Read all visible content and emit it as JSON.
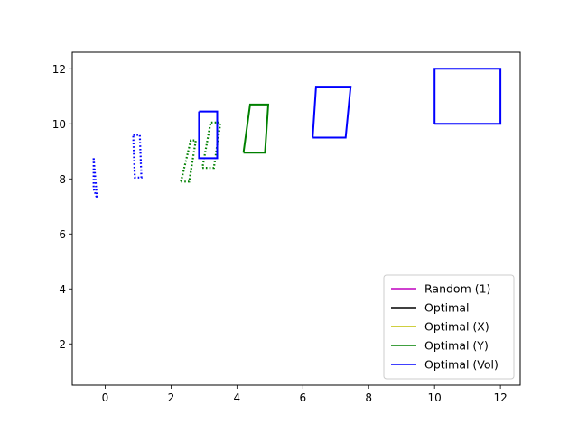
{
  "chart_data": {
    "type": "line",
    "title": "",
    "xlabel": "",
    "ylabel": "",
    "xlim": [
      -1,
      12.6
    ],
    "ylim": [
      0.5,
      12.6
    ],
    "xticks": [
      0,
      2,
      4,
      6,
      8,
      10,
      12
    ],
    "yticks": [
      2,
      4,
      6,
      8,
      10,
      12
    ],
    "grid": false,
    "legend_position": "lower-right",
    "legend": [
      {
        "name": "Random (1)",
        "color": "#bf00bf"
      },
      {
        "name": "Optimal",
        "color": "#000000"
      },
      {
        "name": "Optimal (X)",
        "color": "#bfbf00"
      },
      {
        "name": "Optimal (Y)",
        "color": "#008000"
      },
      {
        "name": "Optimal (Vol)",
        "color": "#0000ff"
      }
    ],
    "series": [
      {
        "name": "Optimal (Y)",
        "color": "#008000",
        "style": "dotted",
        "shapes": [
          [
            [
              2.3,
              7.9
            ],
            [
              2.55,
              7.9
            ],
            [
              2.75,
              9.4
            ],
            [
              2.6,
              9.4
            ],
            [
              2.3,
              7.9
            ]
          ],
          [
            [
              2.95,
              8.4
            ],
            [
              3.3,
              8.4
            ],
            [
              3.5,
              10.05
            ],
            [
              3.2,
              10.05
            ],
            [
              2.95,
              8.4
            ]
          ]
        ]
      },
      {
        "name": "Optimal (Y)",
        "color": "#008000",
        "style": "solid",
        "shapes": [
          [
            [
              4.2,
              8.95
            ],
            [
              4.85,
              8.95
            ],
            [
              4.95,
              10.7
            ],
            [
              4.4,
              10.7
            ],
            [
              4.2,
              8.95
            ]
          ]
        ]
      },
      {
        "name": "Optimal (Vol)",
        "color": "#0000ff",
        "style": "dotted",
        "shapes": [
          [
            [
              -0.35,
              8.75
            ],
            [
              -0.35,
              7.65
            ],
            [
              -0.25,
              7.3
            ],
            [
              -0.35,
              8.75
            ]
          ],
          [
            [
              0.85,
              9.6
            ],
            [
              1.05,
              9.6
            ],
            [
              1.1,
              8.05
            ],
            [
              0.9,
              8.05
            ],
            [
              0.85,
              9.6
            ]
          ]
        ]
      },
      {
        "name": "Optimal (Vol)",
        "color": "#0000ff",
        "style": "solid",
        "shapes": [
          [
            [
              2.85,
              10.45
            ],
            [
              3.4,
              10.45
            ],
            [
              3.4,
              8.75
            ],
            [
              2.85,
              8.75
            ],
            [
              2.85,
              10.45
            ]
          ],
          [
            [
              6.3,
              9.5
            ],
            [
              7.3,
              9.5
            ],
            [
              7.45,
              11.35
            ],
            [
              6.4,
              11.35
            ],
            [
              6.3,
              9.5
            ]
          ],
          [
            [
              10.0,
              10.0
            ],
            [
              12.0,
              10.0
            ],
            [
              12.0,
              12.0
            ],
            [
              10.0,
              12.0
            ],
            [
              10.0,
              10.0
            ]
          ]
        ]
      }
    ]
  }
}
